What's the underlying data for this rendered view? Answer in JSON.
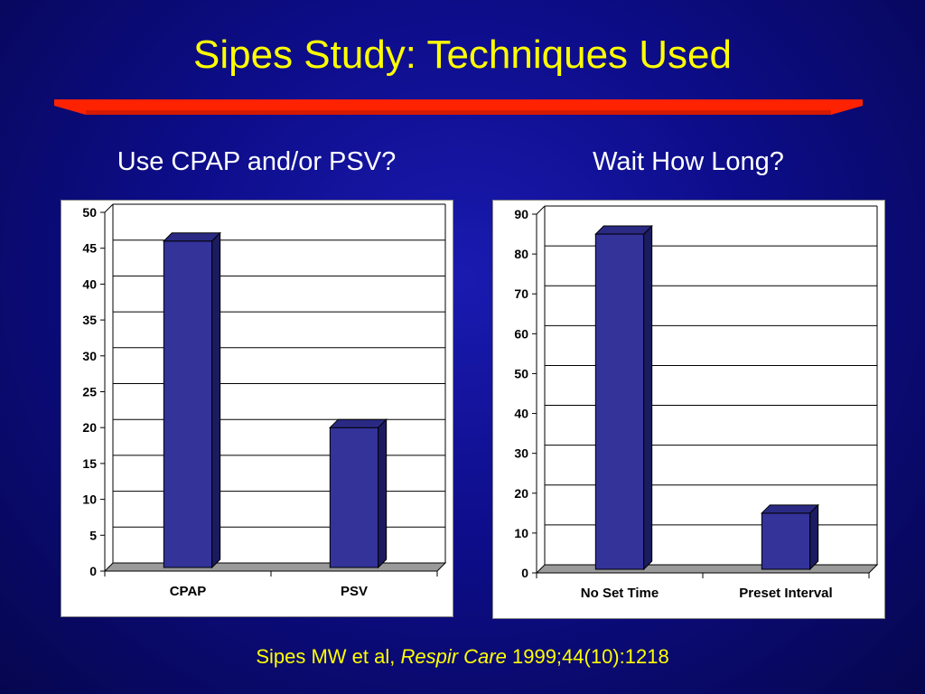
{
  "slide": {
    "title": "Sipes Study: Techniques Used",
    "citation_authors": "Sipes MW et al,",
    "citation_journal": "Respir Care",
    "citation_ref": "1999;44(10):1218",
    "colors": {
      "background": "#0d0d8a",
      "title": "#ffff00",
      "rule": "#ff2200",
      "bar": "#33339a"
    }
  },
  "chart_data": [
    {
      "type": "bar",
      "title": "Use CPAP and/or PSV?",
      "categories": [
        "CPAP",
        "PSV"
      ],
      "values": [
        46,
        20
      ],
      "ylim": [
        0,
        50
      ],
      "yticks": [
        0,
        5,
        10,
        15,
        20,
        25,
        30,
        35,
        40,
        45,
        50
      ],
      "grid": true,
      "style": "3d-bar"
    },
    {
      "type": "bar",
      "title": "Wait How Long?",
      "categories": [
        "No Set Time",
        "Preset Interval"
      ],
      "values": [
        85,
        15
      ],
      "ylim": [
        0,
        90
      ],
      "yticks": [
        0,
        10,
        20,
        30,
        40,
        50,
        60,
        70,
        80,
        90
      ],
      "grid": true,
      "style": "3d-bar"
    }
  ]
}
